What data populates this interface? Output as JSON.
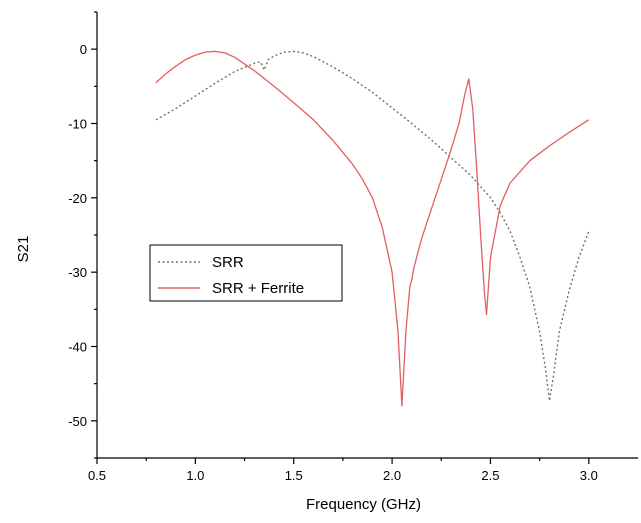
{
  "chart_data": {
    "type": "line",
    "xlabel": "Frequency (GHz)",
    "ylabel": "S21",
    "xlim": [
      0.5,
      3.25
    ],
    "ylim": [
      -55,
      5
    ],
    "xticks": [
      "0.5",
      "1.0",
      "1.5",
      "2.0",
      "2.5",
      "3.0"
    ],
    "yticks": [
      "0",
      "-10",
      "-20",
      "-30",
      "-40",
      "-50"
    ],
    "grid": false,
    "legend_position": "middle-left",
    "series": [
      {
        "name": "SRR",
        "color": "#707070",
        "style": "dotted",
        "points": [
          [
            0.8,
            -9.5
          ],
          [
            0.9,
            -8.0
          ],
          [
            1.0,
            -6.3
          ],
          [
            1.1,
            -4.6
          ],
          [
            1.2,
            -3.0
          ],
          [
            1.3,
            -1.9
          ],
          [
            1.33,
            -1.7
          ],
          [
            1.35,
            -2.8
          ],
          [
            1.37,
            -1.4
          ],
          [
            1.4,
            -0.9
          ],
          [
            1.45,
            -0.4
          ],
          [
            1.5,
            -0.3
          ],
          [
            1.55,
            -0.5
          ],
          [
            1.6,
            -1.0
          ],
          [
            1.7,
            -2.4
          ],
          [
            1.8,
            -4.0
          ],
          [
            1.9,
            -5.8
          ],
          [
            2.0,
            -7.9
          ],
          [
            2.1,
            -10.0
          ],
          [
            2.2,
            -12.2
          ],
          [
            2.3,
            -14.6
          ],
          [
            2.4,
            -17.0
          ],
          [
            2.5,
            -20.0
          ],
          [
            2.55,
            -22.0
          ],
          [
            2.6,
            -24.5
          ],
          [
            2.65,
            -28.0
          ],
          [
            2.7,
            -32.0
          ],
          [
            2.75,
            -38.0
          ],
          [
            2.78,
            -43.0
          ],
          [
            2.8,
            -47.3
          ],
          [
            2.82,
            -44.0
          ],
          [
            2.85,
            -38.0
          ],
          [
            2.9,
            -32.5
          ],
          [
            2.95,
            -28.0
          ],
          [
            3.0,
            -24.5
          ]
        ]
      },
      {
        "name": "SRR + Ferrite",
        "color": "#e06060",
        "style": "solid",
        "points": [
          [
            0.8,
            -4.5
          ],
          [
            0.85,
            -3.3
          ],
          [
            0.9,
            -2.3
          ],
          [
            0.95,
            -1.4
          ],
          [
            1.0,
            -0.8
          ],
          [
            1.05,
            -0.4
          ],
          [
            1.1,
            -0.3
          ],
          [
            1.15,
            -0.5
          ],
          [
            1.2,
            -1.1
          ],
          [
            1.3,
            -2.9
          ],
          [
            1.4,
            -5.0
          ],
          [
            1.5,
            -7.2
          ],
          [
            1.6,
            -9.5
          ],
          [
            1.7,
            -12.3
          ],
          [
            1.8,
            -15.5
          ],
          [
            1.85,
            -17.5
          ],
          [
            1.9,
            -20.0
          ],
          [
            1.95,
            -24.0
          ],
          [
            2.0,
            -30.0
          ],
          [
            2.03,
            -38.0
          ],
          [
            2.05,
            -48.0
          ],
          [
            2.07,
            -38.0
          ],
          [
            2.09,
            -32.0
          ],
          [
            2.1,
            -31.0
          ],
          [
            2.11,
            -29.5
          ],
          [
            2.15,
            -25.5
          ],
          [
            2.2,
            -21.5
          ],
          [
            2.25,
            -17.5
          ],
          [
            2.3,
            -13.5
          ],
          [
            2.34,
            -10.0
          ],
          [
            2.37,
            -6.0
          ],
          [
            2.39,
            -4.0
          ],
          [
            2.41,
            -8.0
          ],
          [
            2.43,
            -16.0
          ],
          [
            2.45,
            -25.0
          ],
          [
            2.47,
            -33.0
          ],
          [
            2.48,
            -35.7
          ],
          [
            2.5,
            -28.0
          ],
          [
            2.55,
            -21.0
          ],
          [
            2.6,
            -18.0
          ],
          [
            2.7,
            -15.0
          ],
          [
            2.8,
            -13.0
          ],
          [
            2.9,
            -11.2
          ],
          [
            3.0,
            -9.5
          ]
        ]
      }
    ]
  }
}
